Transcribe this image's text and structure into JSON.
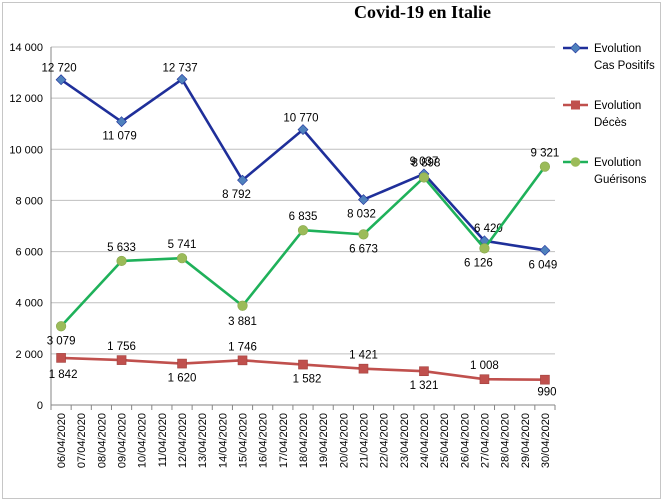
{
  "chart_data": {
    "type": "line",
    "title": "Covid-19 en Italie",
    "xlabel": "",
    "ylabel": "",
    "ylim": [
      0,
      14000
    ],
    "yticks": [
      0,
      2000,
      4000,
      6000,
      8000,
      10000,
      12000,
      14000
    ],
    "ytick_labels": [
      "0",
      "2 000",
      "4 000",
      "6 000",
      "8 000",
      "10 000",
      "12 000",
      "14 000"
    ],
    "grid": true,
    "legend_position": "right",
    "categories": [
      "06/04/2020",
      "07/04/2020",
      "08/04/2020",
      "09/04/2020",
      "10/04/2020",
      "11/04/2020",
      "12/04/2020",
      "13/04/2020",
      "14/04/2020",
      "15/04/2020",
      "16/04/2020",
      "17/04/2020",
      "18/04/2020",
      "19/04/2020",
      "20/04/2020",
      "21/04/2020",
      "22/04/2020",
      "23/04/2020",
      "24/04/2020",
      "25/04/2020",
      "26/04/2020",
      "27/04/2020",
      "28/04/2020",
      "29/04/2020",
      "30/04/2020"
    ],
    "series": [
      {
        "name": "Evolution Cas Positifs",
        "legend_lines": [
          "Evolution",
          "Cas Positifs"
        ],
        "color": "#1f2f9a",
        "marker": "diamond",
        "marker_color": "#4f81bd",
        "points": [
          {
            "x": "06/04/2020",
            "y": 12720,
            "label": "12 720"
          },
          {
            "x": "09/04/2020",
            "y": 11079,
            "label": "11 079"
          },
          {
            "x": "12/04/2020",
            "y": 12737,
            "label": "12 737"
          },
          {
            "x": "15/04/2020",
            "y": 8792,
            "label": "8 792"
          },
          {
            "x": "18/04/2020",
            "y": 10770,
            "label": "10 770"
          },
          {
            "x": "21/04/2020",
            "y": 8032,
            "label": "8 032"
          },
          {
            "x": "24/04/2020",
            "y": 9037,
            "label": "9 037"
          },
          {
            "x": "27/04/2020",
            "y": 6420,
            "label": "6 420"
          },
          {
            "x": "30/04/2020",
            "y": 6049,
            "label": "6 049"
          }
        ]
      },
      {
        "name": "Evolution Décès",
        "legend_lines": [
          "Evolution",
          "Décès"
        ],
        "color": "#c0504d",
        "marker": "square",
        "marker_color": "#c0504d",
        "points": [
          {
            "x": "06/04/2020",
            "y": 1842,
            "label": "1 842"
          },
          {
            "x": "09/04/2020",
            "y": 1756,
            "label": "1 756"
          },
          {
            "x": "12/04/2020",
            "y": 1620,
            "label": "1 620"
          },
          {
            "x": "15/04/2020",
            "y": 1746,
            "label": "1 746"
          },
          {
            "x": "18/04/2020",
            "y": 1582,
            "label": "1 582"
          },
          {
            "x": "21/04/2020",
            "y": 1421,
            "label": "1 421"
          },
          {
            "x": "24/04/2020",
            "y": 1321,
            "label": "1 321"
          },
          {
            "x": "27/04/2020",
            "y": 1008,
            "label": "1 008"
          },
          {
            "x": "30/04/2020",
            "y": 990,
            "label": "990"
          }
        ]
      },
      {
        "name": "Evolution Guérisons",
        "legend_lines": [
          "Evolution",
          "Guérisons"
        ],
        "color": "#1fb15a",
        "marker": "circle",
        "marker_color": "#9bbb59",
        "points": [
          {
            "x": "06/04/2020",
            "y": 3079,
            "label": "3 079"
          },
          {
            "x": "09/04/2020",
            "y": 5633,
            "label": "5 633"
          },
          {
            "x": "12/04/2020",
            "y": 5741,
            "label": "5 741"
          },
          {
            "x": "15/04/2020",
            "y": 3881,
            "label": "3 881"
          },
          {
            "x": "18/04/2020",
            "y": 6835,
            "label": "6 835"
          },
          {
            "x": "21/04/2020",
            "y": 6673,
            "label": "6 673"
          },
          {
            "x": "24/04/2020",
            "y": 8898,
            "label": "8 898"
          },
          {
            "x": "27/04/2020",
            "y": 6126,
            "label": "6 126"
          },
          {
            "x": "30/04/2020",
            "y": 9321,
            "label": "9 321"
          }
        ]
      }
    ]
  }
}
